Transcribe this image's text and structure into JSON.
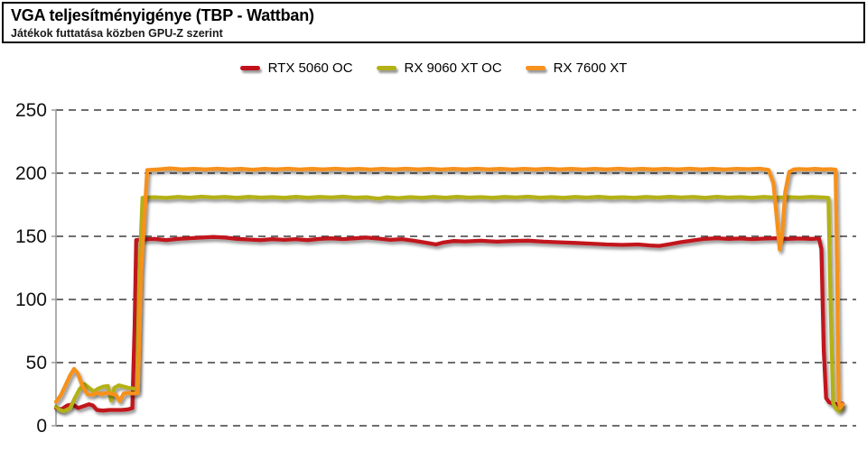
{
  "header": {
    "title": "VGA teljesítményigénye (TBP - Wattban)",
    "subtitle": "Játékok futtatása közben GPU-Z szerint"
  },
  "legend": {
    "position": "top-center",
    "items": [
      {
        "label": "RTX 5060 OC",
        "color": "#c1121c"
      },
      {
        "label": "RX 9060 XT OC",
        "color": "#b3b116"
      },
      {
        "label": "RX 7600 XT",
        "color": "#f6911e"
      }
    ]
  },
  "colors": {
    "background": "#ffffff",
    "grid": "#3f3f3f",
    "axis": "#9b9b9b",
    "tick_text": "#111111",
    "line_shadow": "rgba(0,0,0,0.45)"
  },
  "chart_data": {
    "type": "line",
    "title": "VGA teljesítményigénye (TBP - Wattban)",
    "subtitle": "Játékok futtatása közben GPU-Z szerint",
    "xlabel": "",
    "ylabel": "",
    "x_range_note": "time during game run, normalized 0-100 (no x tick labels shown)",
    "ylim": [
      0,
      250
    ],
    "yticks": [
      0,
      50,
      100,
      150,
      200,
      250
    ],
    "grid": "horizontal dashed lines at every 50 W",
    "legend_position": "top-center",
    "plateau_summary": {
      "RTX 5060 OC": 148,
      "RX 9060 XT OC": 181,
      "RX 7600 XT": 203
    },
    "series": [
      {
        "name": "RTX 5060 OC",
        "color": "#c1121c",
        "points": [
          [
            0,
            14
          ],
          [
            0.7,
            13
          ],
          [
            1.4,
            16
          ],
          [
            2.1,
            17
          ],
          [
            2.8,
            14
          ],
          [
            3.5,
            15.5
          ],
          [
            4.2,
            17
          ],
          [
            4.7,
            16
          ],
          [
            5.2,
            12.5
          ],
          [
            6,
            12
          ],
          [
            6.8,
            12.5
          ],
          [
            7.6,
            12.5
          ],
          [
            8.4,
            12.5
          ],
          [
            9.2,
            13
          ],
          [
            9.7,
            14
          ],
          [
            10,
            80
          ],
          [
            10.2,
            147
          ],
          [
            11,
            147.5
          ],
          [
            12.5,
            148
          ],
          [
            14,
            147
          ],
          [
            15.5,
            148
          ],
          [
            17,
            148.5
          ],
          [
            18.5,
            149
          ],
          [
            20,
            149.5
          ],
          [
            21.5,
            149
          ],
          [
            23,
            148
          ],
          [
            24.5,
            147.5
          ],
          [
            26,
            147
          ],
          [
            27.5,
            147.8
          ],
          [
            29,
            147.2
          ],
          [
            30.5,
            147.8
          ],
          [
            32,
            147
          ],
          [
            33.5,
            148
          ],
          [
            35,
            148.4
          ],
          [
            36.5,
            147.8
          ],
          [
            38,
            148.4
          ],
          [
            39.5,
            149
          ],
          [
            41,
            148.2
          ],
          [
            42.5,
            147.2
          ],
          [
            44,
            147.8
          ],
          [
            45.5,
            146.5
          ],
          [
            47,
            145
          ],
          [
            48.3,
            143.6
          ],
          [
            49.3,
            145.2
          ],
          [
            50.5,
            146.3
          ],
          [
            52,
            146
          ],
          [
            54,
            146.5
          ],
          [
            56,
            145.8
          ],
          [
            58,
            146.3
          ],
          [
            60,
            146.6
          ],
          [
            62,
            145.8
          ],
          [
            64,
            145.3
          ],
          [
            66,
            144.8
          ],
          [
            68,
            144.2
          ],
          [
            70,
            143.6
          ],
          [
            72,
            143.2
          ],
          [
            74,
            143.6
          ],
          [
            75.5,
            142.8
          ],
          [
            76.7,
            142.4
          ],
          [
            78,
            143.8
          ],
          [
            79.5,
            145.4
          ],
          [
            81,
            146.8
          ],
          [
            82.5,
            148
          ],
          [
            84,
            148.5
          ],
          [
            85.5,
            148
          ],
          [
            87,
            148.3
          ],
          [
            88.5,
            147.8
          ],
          [
            90,
            148.2
          ],
          [
            91.5,
            148.5
          ],
          [
            93,
            148
          ],
          [
            94.5,
            148.3
          ],
          [
            96,
            148
          ],
          [
            97,
            148.2
          ],
          [
            97.3,
            140
          ],
          [
            97.6,
            60
          ],
          [
            97.9,
            22
          ],
          [
            98.3,
            18.5
          ],
          [
            98.8,
            17.5
          ],
          [
            99.4,
            17
          ],
          [
            100,
            17.5
          ]
        ]
      },
      {
        "name": "RX 9060 XT OC",
        "color": "#b3b116",
        "points": [
          [
            0,
            15
          ],
          [
            0.5,
            12.5
          ],
          [
            1,
            11.5
          ],
          [
            1.8,
            14
          ],
          [
            2.4,
            22
          ],
          [
            3,
            29
          ],
          [
            3.6,
            33
          ],
          [
            4.2,
            30
          ],
          [
            4.8,
            27
          ],
          [
            5.4,
            29.5
          ],
          [
            6,
            31
          ],
          [
            6.6,
            31.5
          ],
          [
            7,
            20
          ],
          [
            7.4,
            30
          ],
          [
            8,
            32
          ],
          [
            8.6,
            31
          ],
          [
            9.2,
            30
          ],
          [
            9.8,
            29.5
          ],
          [
            10.3,
            29
          ],
          [
            10.6,
            120
          ],
          [
            11,
            180.5
          ],
          [
            12.5,
            181
          ],
          [
            14,
            180.4
          ],
          [
            15.5,
            181.2
          ],
          [
            17,
            180.6
          ],
          [
            18.5,
            181.4
          ],
          [
            20,
            180.8
          ],
          [
            21.5,
            181.2
          ],
          [
            23,
            180.5
          ],
          [
            24.5,
            181.3
          ],
          [
            26,
            180.7
          ],
          [
            27.5,
            181.1
          ],
          [
            29,
            180.5
          ],
          [
            30.5,
            181.3
          ],
          [
            32,
            180.6
          ],
          [
            33.5,
            181.2
          ],
          [
            35,
            180.8
          ],
          [
            36.5,
            181.4
          ],
          [
            38,
            180.6
          ],
          [
            39.5,
            181
          ],
          [
            41,
            179.8
          ],
          [
            42,
            180.9
          ],
          [
            43.5,
            180.3
          ],
          [
            45,
            181.1
          ],
          [
            46.5,
            180.5
          ],
          [
            48,
            181.2
          ],
          [
            49.5,
            180.6
          ],
          [
            51,
            181.3
          ],
          [
            52.5,
            180.7
          ],
          [
            54,
            181.1
          ],
          [
            55.5,
            180.5
          ],
          [
            57,
            181.2
          ],
          [
            58.5,
            180.8
          ],
          [
            60,
            181.4
          ],
          [
            61.5,
            180.6
          ],
          [
            63,
            181.1
          ],
          [
            64.5,
            180.5
          ],
          [
            66,
            181.2
          ],
          [
            67.5,
            180.7
          ],
          [
            69,
            181.3
          ],
          [
            70.5,
            180.6
          ],
          [
            72,
            181
          ],
          [
            73.5,
            180.5
          ],
          [
            75,
            181.2
          ],
          [
            76.5,
            180.7
          ],
          [
            78,
            181.3
          ],
          [
            79.5,
            180.8
          ],
          [
            81,
            181.2
          ],
          [
            82.5,
            180.5
          ],
          [
            84,
            181.3
          ],
          [
            85.5,
            180.7
          ],
          [
            87,
            181.1
          ],
          [
            88.5,
            180.5
          ],
          [
            90,
            181.2
          ],
          [
            91.5,
            180.6
          ],
          [
            93,
            181.1
          ],
          [
            94.5,
            180.7
          ],
          [
            96,
            181.2
          ],
          [
            97.5,
            180.8
          ],
          [
            98.2,
            180.4
          ],
          [
            98.5,
            90
          ],
          [
            98.8,
            18
          ],
          [
            99.2,
            13
          ],
          [
            99.6,
            11.5
          ],
          [
            100,
            14.5
          ]
        ]
      },
      {
        "name": "RX 7600 XT",
        "color": "#f6911e",
        "points": [
          [
            0,
            19
          ],
          [
            0.6,
            24
          ],
          [
            1.2,
            32
          ],
          [
            1.8,
            40
          ],
          [
            2.3,
            45
          ],
          [
            2.8,
            41
          ],
          [
            3.4,
            31
          ],
          [
            4,
            25
          ],
          [
            4.6,
            24.5
          ],
          [
            5.2,
            26
          ],
          [
            5.8,
            25
          ],
          [
            6.4,
            26
          ],
          [
            7,
            25.5
          ],
          [
            7.6,
            24.5
          ],
          [
            8.1,
            19.5
          ],
          [
            8.6,
            25.5
          ],
          [
            9.2,
            26
          ],
          [
            9.8,
            25.5
          ],
          [
            10.4,
            26
          ],
          [
            10.8,
            120
          ],
          [
            11.6,
            202.5
          ],
          [
            13,
            203
          ],
          [
            14.5,
            203.8
          ],
          [
            16,
            203
          ],
          [
            17.5,
            203.5
          ],
          [
            19,
            203
          ],
          [
            20.5,
            203.6
          ],
          [
            22,
            203
          ],
          [
            23.5,
            203.4
          ],
          [
            25,
            202.8
          ],
          [
            26.5,
            203.5
          ],
          [
            28,
            203
          ],
          [
            29.5,
            203.6
          ],
          [
            31,
            202.9
          ],
          [
            32.5,
            203.4
          ],
          [
            34,
            203
          ],
          [
            35.5,
            203.6
          ],
          [
            37,
            203
          ],
          [
            38.5,
            203.5
          ],
          [
            40,
            202.9
          ],
          [
            41.5,
            203.4
          ],
          [
            43,
            203
          ],
          [
            44.5,
            203.6
          ],
          [
            46,
            203
          ],
          [
            47.5,
            203.4
          ],
          [
            49,
            202.9
          ],
          [
            50.5,
            203.5
          ],
          [
            52,
            203
          ],
          [
            53.5,
            203.6
          ],
          [
            55,
            203
          ],
          [
            56.5,
            203.4
          ],
          [
            58,
            202.9
          ],
          [
            59.5,
            203.5
          ],
          [
            61,
            203
          ],
          [
            62.5,
            203.6
          ],
          [
            64,
            203
          ],
          [
            65.5,
            203.4
          ],
          [
            67,
            202.9
          ],
          [
            68.5,
            203.5
          ],
          [
            70,
            203
          ],
          [
            71.5,
            203.6
          ],
          [
            73,
            203
          ],
          [
            74.5,
            203.4
          ],
          [
            76,
            203
          ],
          [
            77.5,
            203.5
          ],
          [
            79,
            203
          ],
          [
            80.5,
            203.6
          ],
          [
            82,
            203
          ],
          [
            83.5,
            203.4
          ],
          [
            85,
            202.9
          ],
          [
            86.5,
            203.5
          ],
          [
            88,
            203.2
          ],
          [
            89.5,
            203.6
          ],
          [
            90.6,
            202.6
          ],
          [
            91.2,
            192
          ],
          [
            91.7,
            160
          ],
          [
            92,
            139.5
          ],
          [
            92.3,
            150
          ],
          [
            92.7,
            185
          ],
          [
            93.2,
            201
          ],
          [
            93.8,
            203
          ],
          [
            94.5,
            203.3
          ],
          [
            95.5,
            203
          ],
          [
            96.5,
            203.4
          ],
          [
            97.5,
            203
          ],
          [
            98.5,
            203.2
          ],
          [
            99.1,
            202.8
          ],
          [
            99.3,
            120
          ],
          [
            99.5,
            20
          ],
          [
            99.7,
            14
          ],
          [
            100,
            17
          ]
        ]
      }
    ]
  }
}
